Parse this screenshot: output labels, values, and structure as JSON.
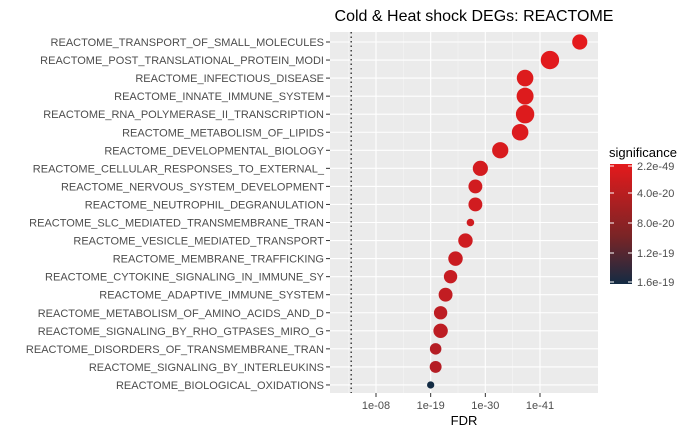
{
  "chart_data": {
    "type": "scatter",
    "title": "Cold & Heat shock DEGs: REACTOME",
    "xlabel": "FDR",
    "ylabel": "",
    "x_scale": "log10",
    "x_reversed": true,
    "xlim": [
      0.0001,
      1e-51
    ],
    "x_ticks": [
      1e-08,
      1e-19,
      1e-30,
      1e-41
    ],
    "x_tick_labels": [
      "1e-08",
      "1e-19",
      "1e-30",
      "1e-41"
    ],
    "reference_line": {
      "x": 0.001,
      "style": "dotted"
    },
    "grid": true,
    "legend": {
      "title": "significance",
      "position": "right",
      "labels": [
        "2.2e-49",
        "4.0e-20",
        "8.0e-20",
        "1.2e-19",
        "1.6e-19"
      ],
      "low_color": "#132b43",
      "high_color": "#e41a1c"
    },
    "categories": [
      "REACTOME_TRANSPORT_OF_SMALL_MOLECULES",
      "REACTOME_POST_TRANSLATIONAL_PROTEIN_MODI",
      "REACTOME_INFECTIOUS_DISEASE",
      "REACTOME_INNATE_IMMUNE_SYSTEM",
      "REACTOME_RNA_POLYMERASE_II_TRANSCRIPTION",
      "REACTOME_METABOLISM_OF_LIPIDS",
      "REACTOME_DEVELOPMENTAL_BIOLOGY",
      "REACTOME_CELLULAR_RESPONSES_TO_EXTERNAL_",
      "REACTOME_NERVOUS_SYSTEM_DEVELOPMENT",
      "REACTOME_NEUTROPHIL_DEGRANULATION",
      "REACTOME_SLC_MEDIATED_TRANSMEMBRANE_TRAN",
      "REACTOME_VESICLE_MEDIATED_TRANSPORT",
      "REACTOME_MEMBRANE_TRAFFICKING",
      "REACTOME_CYTOKINE_SIGNALING_IN_IMMUNE_SY",
      "REACTOME_ADAPTIVE_IMMUNE_SYSTEM",
      "REACTOME_METABOLISM_OF_AMINO_ACIDS_AND_D",
      "REACTOME_SIGNALING_BY_RHO_GTPASES_MIRO_G",
      "REACTOME_DISORDERS_OF_TRANSMEMBRANE_TRAN",
      "REACTOME_SIGNALING_BY_INTERLEUKINS",
      "REACTOME_BIOLOGICAL_OXIDATIONS"
    ],
    "fdr": [
      1e-49,
      1e-43,
      1e-38,
      1e-38,
      1e-38,
      1e-37,
      1e-33,
      1e-29,
      1e-28,
      1e-28,
      1e-27,
      1e-26,
      1e-24,
      1e-23,
      1e-22,
      1e-21,
      1e-21,
      1e-20,
      1e-20,
      1e-19
    ],
    "significance": [
      2.2e-49,
      1e-43,
      1e-38,
      1e-38,
      1e-38,
      1e-37,
      1e-33,
      1e-29,
      1e-28,
      1e-28,
      1e-27,
      1e-26,
      1e-24,
      1e-23,
      1e-22,
      1e-21,
      1e-21,
      1e-20,
      1e-20,
      1.6e-19
    ],
    "dot_size_rank": [
      0.62,
      0.8,
      0.7,
      0.72,
      0.8,
      0.7,
      0.68,
      0.62,
      0.55,
      0.55,
      0.2,
      0.58,
      0.58,
      0.52,
      0.55,
      0.52,
      0.58,
      0.42,
      0.44,
      0.18
    ]
  }
}
